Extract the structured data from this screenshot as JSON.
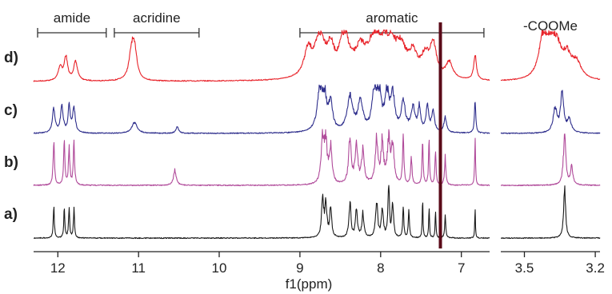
{
  "chart_data": {
    "type": "line",
    "title": "",
    "xlabel": "f1(ppm)",
    "ylabel": "",
    "grid": false,
    "panels": [
      {
        "xlim": [
          12.3,
          6.65
        ],
        "x_ticks": [
          "12",
          "11",
          "10",
          "9",
          "8",
          "7"
        ],
        "x_tick_values": [
          12,
          11,
          10,
          9,
          8,
          7
        ]
      },
      {
        "xlim": [
          3.6,
          3.18
        ],
        "x_ticks": [
          "3.5",
          "3.2"
        ],
        "x_tick_values": [
          3.5,
          3.2
        ]
      }
    ],
    "regions": [
      {
        "label": "amide",
        "from": 12.25,
        "to": 11.4
      },
      {
        "label": "acridine",
        "from": 11.3,
        "to": 10.25
      },
      {
        "label": "aromatic",
        "from": 9.0,
        "to": 6.72
      },
      {
        "label": "-COOMe",
        "from": 3.6,
        "to": 3.18
      }
    ],
    "solvent_line": {
      "x": 7.26,
      "color": "#5a0a18"
    },
    "series": [
      {
        "name": "d)",
        "color": "#e8232a",
        "noise": 0.25,
        "peaks": [
          [
            11.97,
            0.3,
            0.03
          ],
          [
            11.9,
            0.5,
            0.025
          ],
          [
            11.78,
            0.4,
            0.03
          ],
          [
            11.08,
            0.75,
            0.04
          ],
          [
            11.04,
            0.4,
            0.03
          ],
          [
            8.9,
            0.55,
            0.06
          ],
          [
            8.75,
            0.85,
            0.08
          ],
          [
            8.62,
            0.5,
            0.05
          ],
          [
            8.45,
            0.9,
            0.07
          ],
          [
            8.25,
            0.5,
            0.08
          ],
          [
            8.05,
            1.0,
            0.1
          ],
          [
            7.9,
            0.75,
            0.08
          ],
          [
            7.75,
            0.55,
            0.08
          ],
          [
            7.6,
            0.45,
            0.06
          ],
          [
            7.45,
            0.4,
            0.06
          ],
          [
            7.35,
            0.7,
            0.05
          ],
          [
            7.15,
            0.35,
            0.05
          ],
          [
            6.83,
            0.55,
            0.02
          ],
          [
            3.42,
            0.9,
            0.02
          ],
          [
            3.39,
            0.85,
            0.02
          ],
          [
            3.36,
            0.5,
            0.02
          ],
          [
            3.32,
            0.45,
            0.02
          ],
          [
            3.28,
            0.35,
            0.025
          ]
        ]
      },
      {
        "name": "c)",
        "color": "#2e2e8c",
        "noise": 0.35,
        "peaks": [
          [
            12.05,
            0.55,
            0.02
          ],
          [
            11.95,
            0.6,
            0.02
          ],
          [
            11.86,
            0.65,
            0.015
          ],
          [
            11.8,
            0.55,
            0.02
          ],
          [
            11.05,
            0.25,
            0.04
          ],
          [
            10.52,
            0.15,
            0.02
          ],
          [
            8.75,
            0.95,
            0.04
          ],
          [
            8.7,
            0.8,
            0.03
          ],
          [
            8.62,
            0.6,
            0.03
          ],
          [
            8.38,
            0.8,
            0.04
          ],
          [
            8.25,
            0.65,
            0.04
          ],
          [
            8.08,
            0.9,
            0.03
          ],
          [
            8.02,
            1.0,
            0.03
          ],
          [
            7.92,
            0.85,
            0.03
          ],
          [
            7.85,
            0.8,
            0.03
          ],
          [
            7.72,
            0.7,
            0.03
          ],
          [
            7.6,
            0.55,
            0.03
          ],
          [
            7.52,
            0.55,
            0.02
          ],
          [
            7.42,
            0.6,
            0.02
          ],
          [
            7.35,
            0.5,
            0.02
          ],
          [
            7.2,
            0.35,
            0.02
          ],
          [
            6.83,
            0.75,
            0.01
          ],
          [
            3.37,
            0.55,
            0.01
          ],
          [
            3.34,
            0.9,
            0.008
          ],
          [
            3.31,
            0.3,
            0.01
          ]
        ]
      },
      {
        "name": "b)",
        "color": "#b04a9a",
        "noise": 0.5,
        "peaks": [
          [
            12.05,
            0.85,
            0.01
          ],
          [
            11.92,
            0.8,
            0.01
          ],
          [
            11.86,
            0.75,
            0.01
          ],
          [
            11.8,
            0.8,
            0.01
          ],
          [
            10.55,
            0.3,
            0.02
          ],
          [
            8.72,
            0.95,
            0.02
          ],
          [
            8.68,
            0.8,
            0.02
          ],
          [
            8.62,
            0.7,
            0.02
          ],
          [
            8.38,
            0.9,
            0.02
          ],
          [
            8.3,
            0.75,
            0.02
          ],
          [
            8.22,
            0.65,
            0.02
          ],
          [
            8.05,
            0.9,
            0.02
          ],
          [
            7.98,
            0.8,
            0.02
          ],
          [
            7.9,
            0.85,
            0.02
          ],
          [
            7.85,
            0.75,
            0.02
          ],
          [
            7.72,
            0.9,
            0.01
          ],
          [
            7.62,
            0.55,
            0.01
          ],
          [
            7.48,
            0.95,
            0.008
          ],
          [
            7.4,
            0.85,
            0.008
          ],
          [
            7.32,
            0.7,
            0.008
          ],
          [
            7.2,
            0.55,
            0.01
          ],
          [
            6.83,
            0.95,
            0.006
          ],
          [
            3.33,
            1.0,
            0.006
          ],
          [
            3.3,
            0.35,
            0.006
          ]
        ]
      },
      {
        "name": "a)",
        "color": "#1a1a1a",
        "noise": 0.5,
        "peaks": [
          [
            12.05,
            0.6,
            0.008
          ],
          [
            11.92,
            0.55,
            0.008
          ],
          [
            11.86,
            0.6,
            0.008
          ],
          [
            11.8,
            0.55,
            0.008
          ],
          [
            8.72,
            0.75,
            0.015
          ],
          [
            8.68,
            0.65,
            0.015
          ],
          [
            8.62,
            0.55,
            0.015
          ],
          [
            8.38,
            0.65,
            0.015
          ],
          [
            8.3,
            0.5,
            0.015
          ],
          [
            8.22,
            0.45,
            0.015
          ],
          [
            8.05,
            0.7,
            0.015
          ],
          [
            7.98,
            0.55,
            0.015
          ],
          [
            7.9,
            0.9,
            0.012
          ],
          [
            7.85,
            0.65,
            0.012
          ],
          [
            7.72,
            0.6,
            0.008
          ],
          [
            7.65,
            0.55,
            0.008
          ],
          [
            7.48,
            0.7,
            0.006
          ],
          [
            7.4,
            0.6,
            0.006
          ],
          [
            7.32,
            0.5,
            0.006
          ],
          [
            7.2,
            0.45,
            0.008
          ],
          [
            6.83,
            0.55,
            0.005
          ],
          [
            3.33,
            0.95,
            0.005
          ]
        ]
      }
    ]
  }
}
